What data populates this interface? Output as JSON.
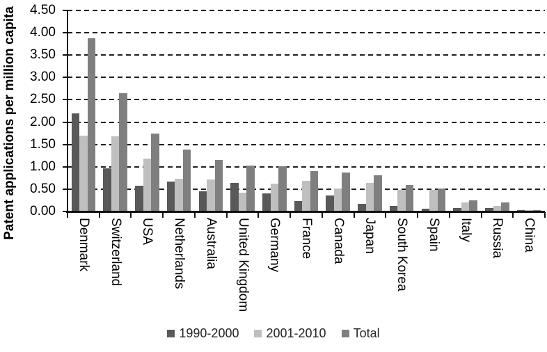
{
  "chart_data": {
    "type": "bar",
    "title": "",
    "xlabel": "",
    "ylabel": "Patent applications per million capita",
    "ylim": [
      0,
      4.5
    ],
    "ytick_step": 0.5,
    "yticks": [
      "0.00",
      "0.50",
      "1.00",
      "1.50",
      "2.00",
      "2.50",
      "3.00",
      "3.50",
      "4.00",
      "4.50"
    ],
    "grid": "horizontal-dashed",
    "legend_position": "bottom-center",
    "categories": [
      "Denmark",
      "Switzerland",
      "USA",
      "Netherlands",
      "Australia",
      "United Kingdom",
      "Germany",
      "France",
      "Canada",
      "Japan",
      "South Korea",
      "Spain",
      "Italy",
      "Russia",
      "China"
    ],
    "series": [
      {
        "name": "1990-2000",
        "color": "#595959",
        "values": [
          2.18,
          0.95,
          0.56,
          0.66,
          0.43,
          0.62,
          0.39,
          0.22,
          0.35,
          0.16,
          0.11,
          0.04,
          0.06,
          0.07,
          0.01
        ]
      },
      {
        "name": "2001-2010",
        "color": "#bfbfbf",
        "values": [
          1.68,
          1.67,
          1.17,
          0.71,
          0.7,
          0.4,
          0.6,
          0.67,
          0.5,
          0.63,
          0.46,
          0.46,
          0.18,
          0.11,
          0.01
        ]
      },
      {
        "name": "Total",
        "color": "#7f7f7f",
        "values": [
          3.86,
          2.63,
          1.73,
          1.37,
          1.13,
          1.01,
          0.99,
          0.89,
          0.85,
          0.79,
          0.57,
          0.5,
          0.24,
          0.18,
          0.02
        ]
      }
    ],
    "colors": {
      "axis": "#111111",
      "gridline": "#1f1f1f",
      "text": "#000000"
    }
  }
}
